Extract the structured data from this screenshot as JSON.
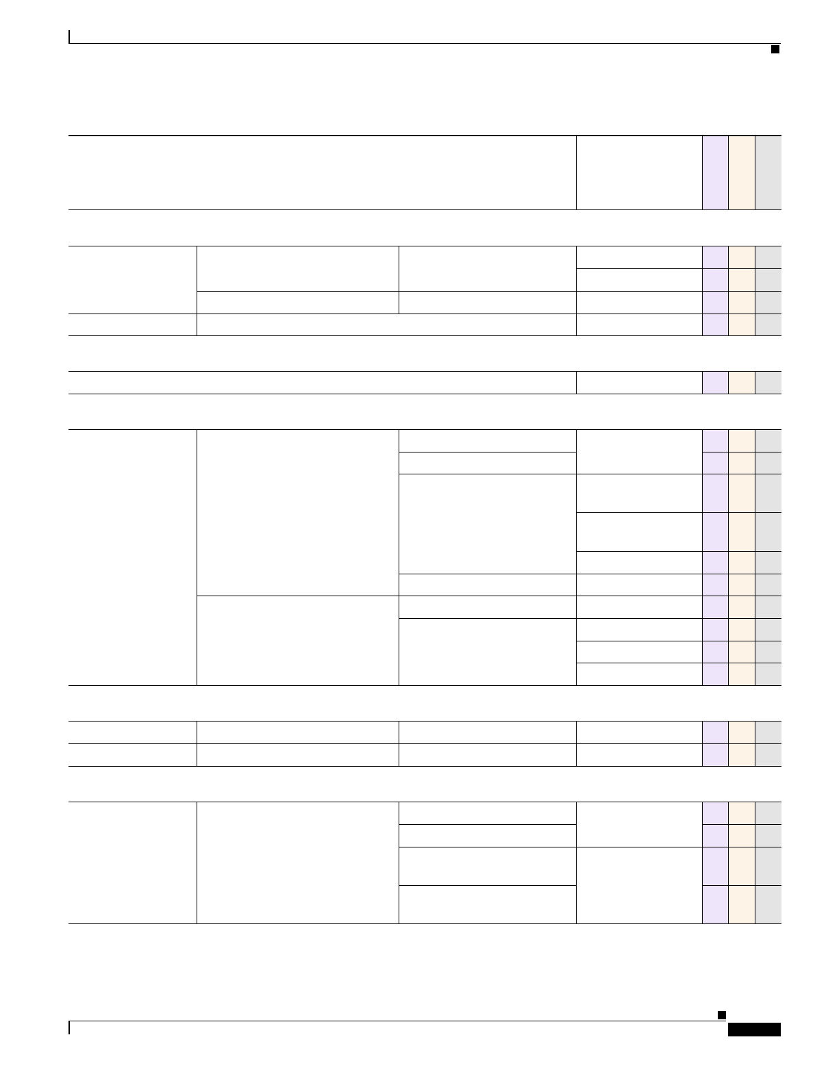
{
  "page": {
    "header": {},
    "footer": {}
  },
  "colors": {
    "column_a": "#efe5fb",
    "column_b": "#fdf3e6",
    "column_c": "#e4e4e4",
    "rule": "#000000"
  }
}
